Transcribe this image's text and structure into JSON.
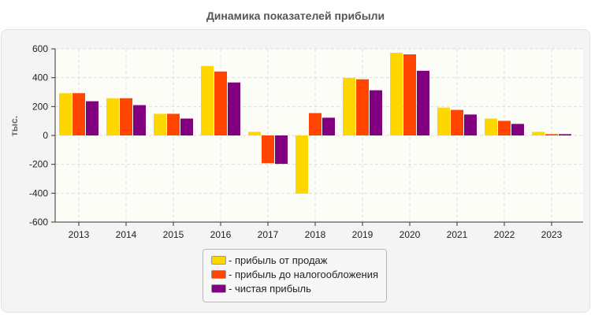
{
  "chart_data": {
    "type": "bar",
    "title": "Динамика показателей прибыли",
    "ylabel": "тыс.",
    "xlabel": "",
    "ylim": [
      -600,
      600
    ],
    "yticks": [
      600,
      400,
      200,
      0,
      -200,
      -400,
      -600
    ],
    "grid": true,
    "legend_position": "bottom",
    "categories": [
      "2013",
      "2014",
      "2015",
      "2016",
      "2017",
      "2018",
      "2019",
      "2020",
      "2021",
      "2022",
      "2023"
    ],
    "series": [
      {
        "name": "- прибыль от продаж",
        "color": "#FFD700",
        "values": [
          293,
          258,
          150,
          481,
          25,
          -403,
          399,
          573,
          193,
          117,
          25
        ]
      },
      {
        "name": "- прибыль до налогообложения",
        "color": "#FF4500",
        "values": [
          293,
          258,
          150,
          443,
          -192,
          155,
          389,
          562,
          177,
          101,
          9
        ]
      },
      {
        "name": "- чистая прибыль",
        "color": "#800080",
        "values": [
          237,
          210,
          117,
          367,
          -197,
          123,
          313,
          448,
          145,
          80,
          9
        ]
      }
    ]
  }
}
